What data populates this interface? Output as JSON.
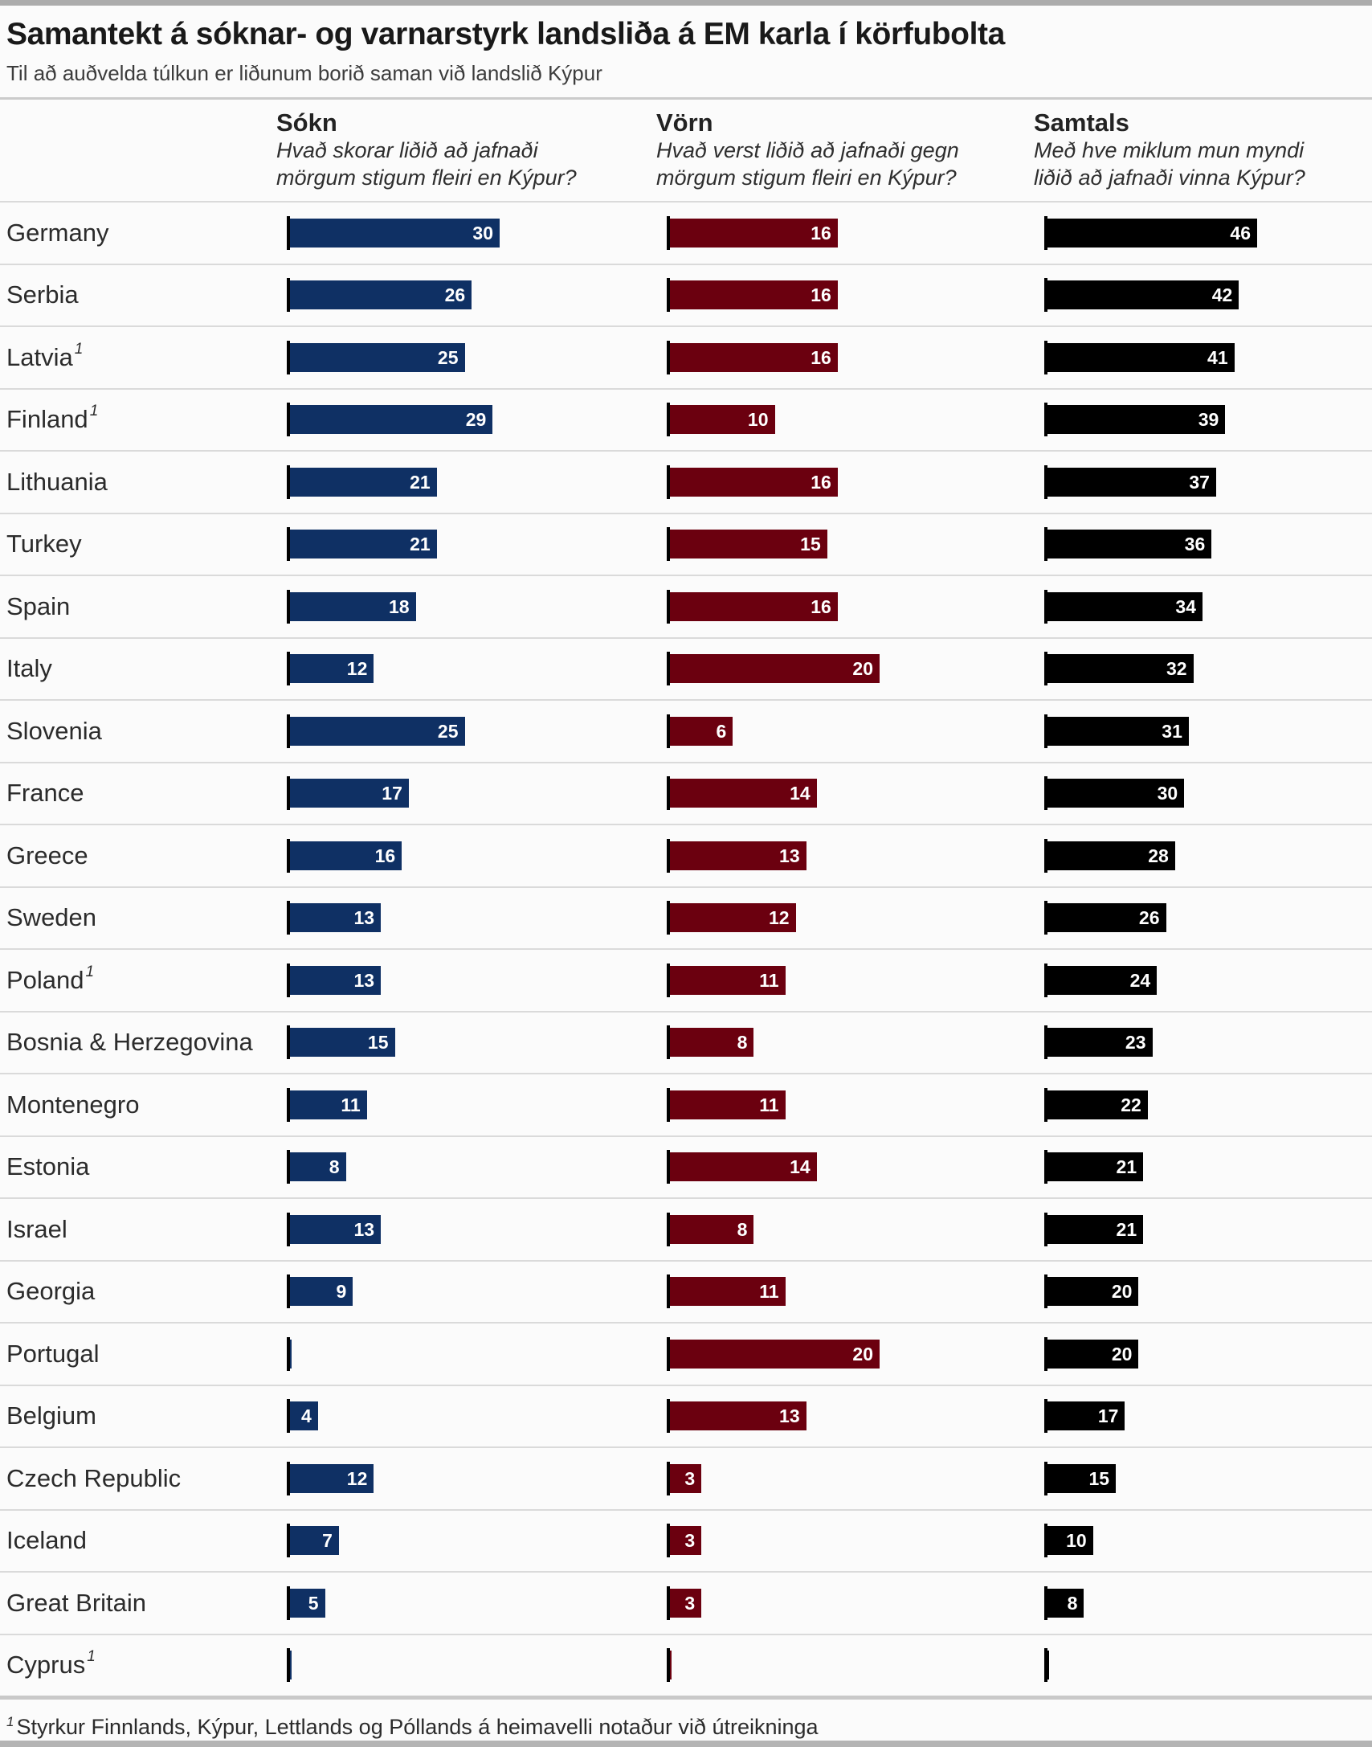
{
  "page": {
    "title": "Samantekt á sóknar- og varnarstyrk landsliða á EM karla í körfubolta",
    "subtitle": "Til að auðvelda túlkun er liðunum borið saman við landslið Kýpur",
    "footnote_marker": "1",
    "footnote_text": "Styrkur Finnlands, Kýpur, Lettlands og Póllands á heimavelli notaður við útreikninga"
  },
  "columns": [
    {
      "key": "offense",
      "label": "Sókn",
      "desc": [
        "Hvað skorar liðið að jafnaði",
        "mörgum stigum fleiri en Kýpur?"
      ],
      "color": "#0f3064"
    },
    {
      "key": "defense",
      "label": "Vörn",
      "desc": [
        "Hvað verst liðið að jafnaði gegn",
        "mörgum stigum fleiri en Kýpur?"
      ],
      "color": "#6b000f"
    },
    {
      "key": "total",
      "label": "Samtals",
      "desc": [
        "Með hve miklum mun myndi",
        "liðið að jafnaði vinna Kýpur?"
      ],
      "color": "#000000"
    }
  ],
  "rows": [
    {
      "country": "Germany",
      "sup": "",
      "offense": 30,
      "defense": 16,
      "total": 46
    },
    {
      "country": "Serbia",
      "sup": "",
      "offense": 26,
      "defense": 16,
      "total": 42
    },
    {
      "country": "Latvia",
      "sup": "1",
      "offense": 25,
      "defense": 16,
      "total": 41
    },
    {
      "country": "Finland",
      "sup": "1",
      "offense": 29,
      "defense": 10,
      "total": 39
    },
    {
      "country": "Lithuania",
      "sup": "",
      "offense": 21,
      "defense": 16,
      "total": 37
    },
    {
      "country": "Turkey",
      "sup": "",
      "offense": 21,
      "defense": 15,
      "total": 36
    },
    {
      "country": "Spain",
      "sup": "",
      "offense": 18,
      "defense": 16,
      "total": 34
    },
    {
      "country": "Italy",
      "sup": "",
      "offense": 12,
      "defense": 20,
      "total": 32
    },
    {
      "country": "Slovenia",
      "sup": "",
      "offense": 25,
      "defense": 6,
      "total": 31
    },
    {
      "country": "France",
      "sup": "",
      "offense": 17,
      "defense": 14,
      "total": 30
    },
    {
      "country": "Greece",
      "sup": "",
      "offense": 16,
      "defense": 13,
      "total": 28
    },
    {
      "country": "Sweden",
      "sup": "",
      "offense": 13,
      "defense": 12,
      "total": 26
    },
    {
      "country": "Poland",
      "sup": "1",
      "offense": 13,
      "defense": 11,
      "total": 24
    },
    {
      "country": "Bosnia & Herzegovina",
      "sup": "",
      "offense": 15,
      "defense": 8,
      "total": 23
    },
    {
      "country": "Montenegro",
      "sup": "",
      "offense": 11,
      "defense": 11,
      "total": 22
    },
    {
      "country": "Estonia",
      "sup": "",
      "offense": 8,
      "defense": 14,
      "total": 21
    },
    {
      "country": "Israel",
      "sup": "",
      "offense": 13,
      "defense": 8,
      "total": 21
    },
    {
      "country": "Georgia",
      "sup": "",
      "offense": 9,
      "defense": 11,
      "total": 20
    },
    {
      "country": "Portugal",
      "sup": "",
      "offense": 0,
      "defense": 20,
      "total": 20
    },
    {
      "country": "Belgium",
      "sup": "",
      "offense": 4,
      "defense": 13,
      "total": 17
    },
    {
      "country": "Czech Republic",
      "sup": "",
      "offense": 12,
      "defense": 3,
      "total": 15
    },
    {
      "country": "Iceland",
      "sup": "",
      "offense": 7,
      "defense": 3,
      "total": 10
    },
    {
      "country": "Great Britain",
      "sup": "",
      "offense": 5,
      "defense": 3,
      "total": 8
    },
    {
      "country": "Cyprus",
      "sup": "1",
      "offense": 0,
      "defense": 0,
      "total": 0
    }
  ],
  "chart_data": {
    "type": "bar",
    "orientation": "horizontal",
    "title": "Samantekt á sóknar- og varnarstyrk landsliða á EM karla í körfubolta",
    "subtitle": "Til að auðvelda túlkun er liðunum borið saman við landslið Kýpur",
    "categories": [
      "Germany",
      "Serbia",
      "Latvia",
      "Finland",
      "Lithuania",
      "Turkey",
      "Spain",
      "Italy",
      "Slovenia",
      "France",
      "Greece",
      "Sweden",
      "Poland",
      "Bosnia & Herzegovina",
      "Montenegro",
      "Estonia",
      "Israel",
      "Georgia",
      "Portugal",
      "Belgium",
      "Czech Republic",
      "Iceland",
      "Great Britain",
      "Cyprus"
    ],
    "series": [
      {
        "name": "Sókn",
        "question": "Hvað skorar liðið að jafnaði mörgum stigum fleiri en Kýpur?",
        "color": "#0f3064",
        "axis_range": [
          0,
          30
        ],
        "values": [
          30,
          26,
          25,
          29,
          21,
          21,
          18,
          12,
          25,
          17,
          16,
          13,
          13,
          15,
          11,
          8,
          13,
          9,
          0,
          4,
          12,
          7,
          5,
          0
        ]
      },
      {
        "name": "Vörn",
        "question": "Hvað verst liðið að jafnaði gegn mörgum stigum fleiri en Kýpur?",
        "color": "#6b000f",
        "axis_range": [
          0,
          20
        ],
        "values": [
          16,
          16,
          16,
          10,
          16,
          15,
          16,
          20,
          6,
          14,
          13,
          12,
          11,
          8,
          11,
          14,
          8,
          11,
          20,
          13,
          3,
          3,
          3,
          0
        ]
      },
      {
        "name": "Samtals",
        "question": "Með hve miklum mun myndi liðið að jafnaði vinna Kýpur?",
        "color": "#000000",
        "axis_range": [
          0,
          46
        ],
        "values": [
          46,
          42,
          41,
          39,
          37,
          36,
          34,
          32,
          31,
          30,
          28,
          26,
          24,
          23,
          22,
          21,
          21,
          20,
          20,
          17,
          15,
          10,
          8,
          0
        ]
      }
    ],
    "value_labels": "inside-end, white",
    "grid": false,
    "legend": false,
    "footnote": "1 Styrkur Finnlands, Kýpur, Lettlands og Póllands á heimavelli notaður við útreikninga"
  }
}
